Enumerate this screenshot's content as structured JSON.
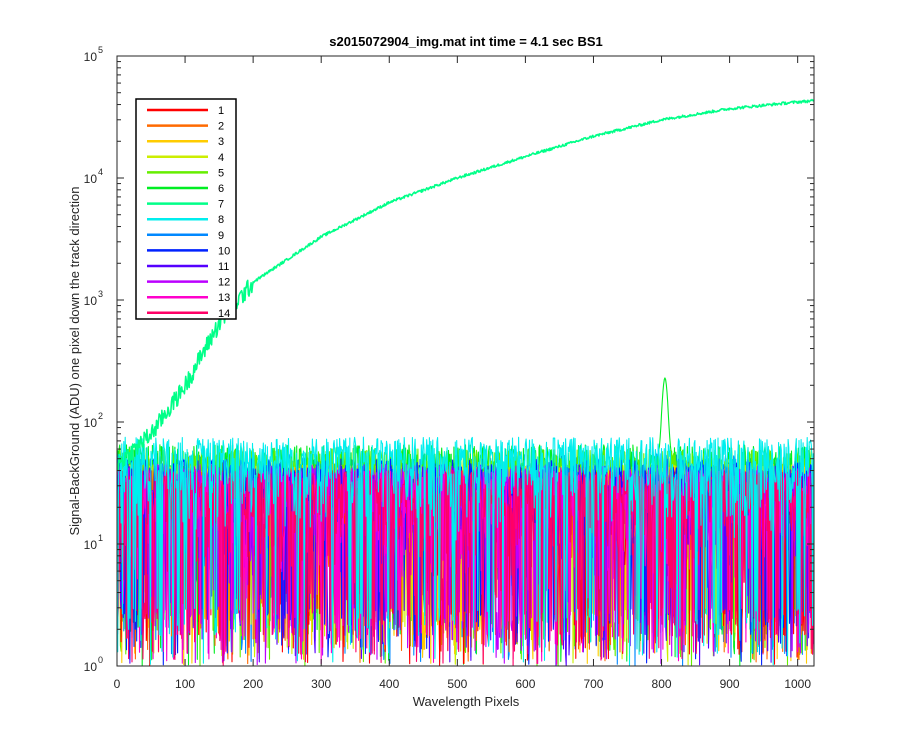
{
  "chart_data": {
    "type": "line",
    "title": "s2015072904_img.mat int time = 4.1 sec   BS1",
    "xlabel": "Wavelength Pixels",
    "ylabel": "Signal-BackGround (ADU) one pixel down the track direction",
    "x_range": [
      0,
      1024
    ],
    "y_range": [
      1,
      100000
    ],
    "y_scale": "log",
    "x_ticks": [
      "0",
      "100",
      "200",
      "300",
      "400",
      "500",
      "600",
      "700",
      "800",
      "900",
      "1000"
    ],
    "y_ticks": [
      {
        "base": "10",
        "exp": "0"
      },
      {
        "base": "10",
        "exp": "1"
      },
      {
        "base": "10",
        "exp": "2"
      },
      {
        "base": "10",
        "exp": "3"
      },
      {
        "base": "10",
        "exp": "4"
      },
      {
        "base": "10",
        "exp": "5"
      }
    ],
    "grid": false,
    "legend_position": "top-left",
    "series": [
      {
        "name": "1",
        "color": "#ff0000",
        "typical_range": [
          2,
          40
        ]
      },
      {
        "name": "2",
        "color": "#ff6a00",
        "typical_range": [
          2,
          42
        ]
      },
      {
        "name": "3",
        "color": "#ffcc00",
        "typical_range": [
          2,
          45
        ]
      },
      {
        "name": "4",
        "color": "#ccee00",
        "typical_range": [
          2,
          45
        ]
      },
      {
        "name": "5",
        "color": "#66ee00",
        "typical_range": [
          4,
          60
        ]
      },
      {
        "name": "6",
        "color": "#00ee22",
        "typical_range": [
          5,
          65
        ],
        "peak": {
          "x": 805,
          "y": 180
        }
      },
      {
        "name": "7",
        "color": "#00ff88",
        "profile": [
          [
            0,
            45
          ],
          [
            50,
            80
          ],
          [
            100,
            200
          ],
          [
            150,
            650
          ],
          [
            200,
            1400
          ],
          [
            300,
            3300
          ],
          [
            400,
            6300
          ],
          [
            500,
            10000
          ],
          [
            600,
            15000
          ],
          [
            700,
            22000
          ],
          [
            800,
            30000
          ],
          [
            900,
            37000
          ],
          [
            1000,
            42000
          ],
          [
            1024,
            43000
          ]
        ]
      },
      {
        "name": "8",
        "color": "#00eeee",
        "typical_range": [
          10,
          75
        ]
      },
      {
        "name": "9",
        "color": "#0088ff",
        "typical_range": [
          2,
          55
        ]
      },
      {
        "name": "10",
        "color": "#0022ff",
        "typical_range": [
          1,
          50
        ]
      },
      {
        "name": "11",
        "color": "#5500ff",
        "typical_range": [
          1,
          45
        ]
      },
      {
        "name": "12",
        "color": "#bb00ff",
        "typical_range": [
          1,
          45
        ]
      },
      {
        "name": "13",
        "color": "#ff00cc",
        "typical_range": [
          1,
          40
        ]
      },
      {
        "name": "14",
        "color": "#ff0066",
        "typical_range": [
          2,
          40
        ]
      }
    ]
  }
}
